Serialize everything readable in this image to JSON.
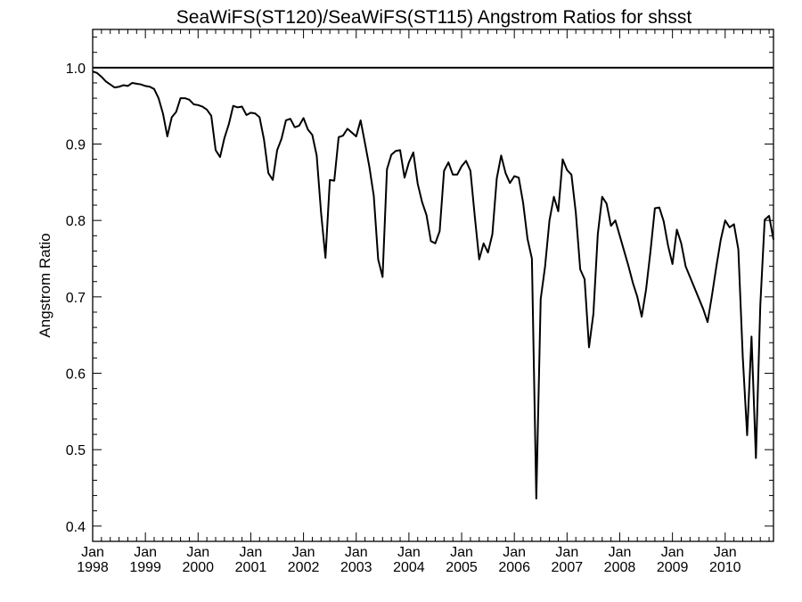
{
  "chart_data": {
    "type": "line",
    "title": "SeaWiFS(ST120)/SeaWiFS(ST115)  Angstrom Ratios for shsst",
    "xlabel": "",
    "ylabel": "Angstrom Ratio",
    "xlim": [
      "1998-01",
      "2010-12"
    ],
    "ylim": [
      0.38,
      1.05
    ],
    "y_ticks": [
      "0.4",
      "0.5",
      "0.6",
      "0.7",
      "0.8",
      "0.9",
      "1.0"
    ],
    "x_ticks": [
      {
        "month": "Jan",
        "year": "1998"
      },
      {
        "month": "Jan",
        "year": "1999"
      },
      {
        "month": "Jan",
        "year": "2000"
      },
      {
        "month": "Jan",
        "year": "2001"
      },
      {
        "month": "Jan",
        "year": "2002"
      },
      {
        "month": "Jan",
        "year": "2003"
      },
      {
        "month": "Jan",
        "year": "2004"
      },
      {
        "month": "Jan",
        "year": "2005"
      },
      {
        "month": "Jan",
        "year": "2006"
      },
      {
        "month": "Jan",
        "year": "2007"
      },
      {
        "month": "Jan",
        "year": "2008"
      },
      {
        "month": "Jan",
        "year": "2009"
      },
      {
        "month": "Jan",
        "year": "2010"
      }
    ],
    "reference_line": 1.0,
    "grid": false,
    "series": [
      {
        "x": [
          "1998-01",
          "1998-02",
          "1998-03",
          "1998-04",
          "1998-05",
          "1998-06",
          "1998-07",
          "1998-08",
          "1998-09",
          "1998-10",
          "1998-11",
          "1998-12",
          "1999-01",
          "1999-02",
          "1999-03",
          "1999-04",
          "1999-05",
          "1999-06",
          "1999-07",
          "1999-08",
          "1999-09",
          "1999-10",
          "1999-11",
          "1999-12",
          "2000-01",
          "2000-02",
          "2000-03",
          "2000-04",
          "2000-05",
          "2000-06",
          "2000-07",
          "2000-08",
          "2000-09",
          "2000-10",
          "2000-11",
          "2000-12",
          "2001-01",
          "2001-02",
          "2001-03",
          "2001-04",
          "2001-05",
          "2001-06",
          "2001-07",
          "2001-08",
          "2001-09",
          "2001-10",
          "2001-11",
          "2001-12",
          "2002-01",
          "2002-02",
          "2002-03",
          "2002-04",
          "2002-05",
          "2002-06",
          "2002-07",
          "2002-08",
          "2002-09",
          "2002-10",
          "2002-11",
          "2002-12",
          "2003-01",
          "2003-02",
          "2003-03",
          "2003-04",
          "2003-05",
          "2003-06",
          "2003-07",
          "2003-08",
          "2003-09",
          "2003-10",
          "2003-11",
          "2003-12",
          "2004-01",
          "2004-02",
          "2004-03",
          "2004-04",
          "2004-05",
          "2004-06",
          "2004-07",
          "2004-08",
          "2004-09",
          "2004-10",
          "2004-11",
          "2004-12",
          "2005-01",
          "2005-02",
          "2005-03",
          "2005-04",
          "2005-05",
          "2005-06",
          "2005-07",
          "2005-08",
          "2005-09",
          "2005-10",
          "2005-11",
          "2005-12",
          "2006-01",
          "2006-02",
          "2006-03",
          "2006-04",
          "2006-05",
          "2006-06",
          "2006-07",
          "2006-08",
          "2006-09",
          "2006-10",
          "2006-11",
          "2006-12",
          "2007-01",
          "2007-02",
          "2007-03",
          "2007-04",
          "2007-05",
          "2007-06",
          "2007-07",
          "2007-08",
          "2007-09",
          "2007-10",
          "2007-11",
          "2007-12",
          "2008-01",
          "2008-02",
          "2008-03",
          "2008-04",
          "2008-05",
          "2008-06",
          "2008-07",
          "2008-08",
          "2008-09",
          "2008-10",
          "2008-11",
          "2008-12",
          "2009-01",
          "2009-02",
          "2009-03",
          "2009-04",
          "2009-05",
          "2009-06",
          "2009-07",
          "2009-08",
          "2009-09",
          "2009-10",
          "2009-11",
          "2009-12",
          "2010-01",
          "2010-02",
          "2010-03",
          "2010-04",
          "2010-05",
          "2010-06",
          "2010-07",
          "2010-08",
          "2010-09",
          "2010-10",
          "2010-11",
          "2010-12"
        ],
        "values": [
          0.995,
          0.993,
          0.988,
          0.982,
          0.978,
          0.974,
          0.975,
          0.977,
          0.976,
          0.98,
          0.979,
          0.978,
          0.976,
          0.975,
          0.972,
          0.96,
          0.94,
          0.91,
          0.935,
          0.942,
          0.96,
          0.96,
          0.958,
          0.952,
          0.951,
          0.949,
          0.945,
          0.937,
          0.892,
          0.883,
          0.908,
          0.926,
          0.95,
          0.948,
          0.949,
          0.938,
          0.941,
          0.94,
          0.935,
          0.906,
          0.862,
          0.853,
          0.892,
          0.907,
          0.931,
          0.933,
          0.922,
          0.924,
          0.934,
          0.919,
          0.912,
          0.885,
          0.81,
          0.751,
          0.853,
          0.852,
          0.909,
          0.911,
          0.92,
          0.915,
          0.91,
          0.931,
          0.901,
          0.87,
          0.832,
          0.749,
          0.726,
          0.867,
          0.886,
          0.891,
          0.892,
          0.856,
          0.876,
          0.889,
          0.848,
          0.824,
          0.807,
          0.773,
          0.77,
          0.786,
          0.865,
          0.876,
          0.86,
          0.86,
          0.871,
          0.878,
          0.865,
          0.805,
          0.749,
          0.77,
          0.758,
          0.782,
          0.855,
          0.885,
          0.862,
          0.849,
          0.858,
          0.856,
          0.823,
          0.776,
          0.75,
          0.436,
          0.697,
          0.74,
          0.8,
          0.831,
          0.812,
          0.88,
          0.866,
          0.86,
          0.81,
          0.736,
          0.723,
          0.634,
          0.678,
          0.782,
          0.831,
          0.822,
          0.793,
          0.8,
          0.78,
          0.76,
          0.74,
          0.718,
          0.7,
          0.674,
          0.71,
          0.76,
          0.816,
          0.817,
          0.799,
          0.767,
          0.743,
          0.788,
          0.77,
          0.74,
          0.726,
          0.712,
          0.698,
          0.684,
          0.667,
          0.702,
          0.74,
          0.775,
          0.8,
          0.791,
          0.795,
          0.762,
          0.622,
          0.519,
          0.648,
          0.489,
          0.689,
          0.801,
          0.806,
          0.775
        ]
      }
    ]
  }
}
